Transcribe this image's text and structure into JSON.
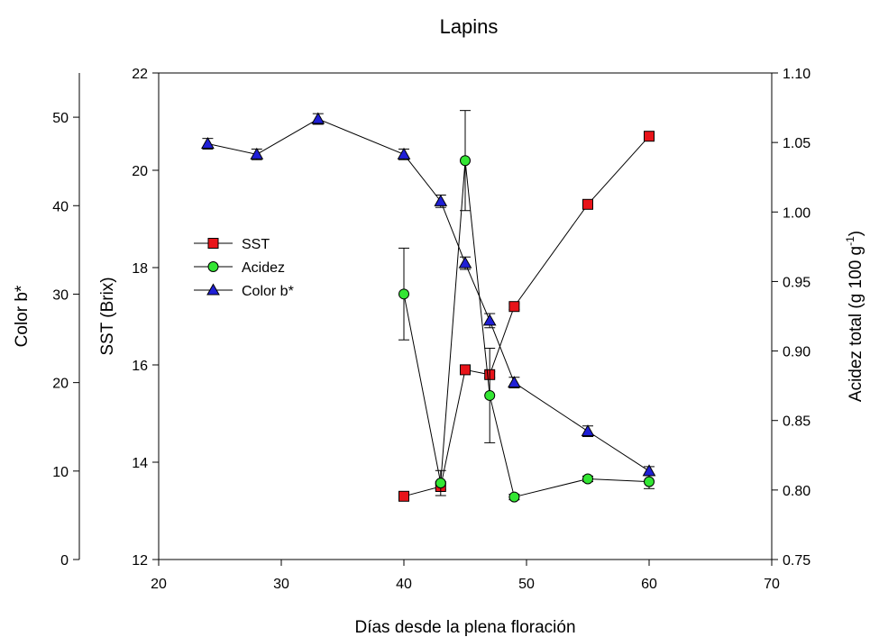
{
  "chart_data": {
    "type": "line",
    "title": "Lapins",
    "xlabel": "Días desde la plena floración",
    "ylabel_left_outer": "Color b*",
    "ylabel_left": "SST (Brix)",
    "ylabel_right": "Acidez total (g 100 g",
    "ylabel_right_sup": "-1",
    "ylabel_right_close": ")",
    "xlim": [
      20,
      70
    ],
    "xticks": [
      "20",
      "30",
      "40",
      "50",
      "60",
      "70"
    ],
    "y_sst_lim": [
      12,
      22
    ],
    "y_sst_ticks": [
      "12",
      "14",
      "16",
      "18",
      "20",
      "22"
    ],
    "y_color_lim": [
      0,
      55
    ],
    "y_color_ticks": [
      "0",
      "10",
      "20",
      "30",
      "40",
      "50"
    ],
    "y_acid_lim": [
      0.75,
      1.1
    ],
    "y_acid_ticks": [
      "0.75",
      "0.80",
      "0.85",
      "0.90",
      "0.95",
      "1.00",
      "1.05",
      "1.10"
    ],
    "legend_position": "left-center",
    "series": [
      {
        "name": "SST",
        "axis": "sst",
        "marker": "square",
        "color": "#e8141a",
        "x": [
          40,
          43,
          45,
          47,
          49,
          55,
          60
        ],
        "y": [
          13.3,
          13.5,
          15.9,
          15.8,
          17.2,
          19.3,
          20.7
        ],
        "err": [
          0.06,
          0.06,
          0.06,
          0.06,
          0.06,
          0.06,
          0.07
        ]
      },
      {
        "name": "Acidez",
        "axis": "acid",
        "marker": "circle",
        "color": "#33e633",
        "x": [
          40,
          43,
          45,
          47,
          49,
          55,
          60
        ],
        "y": [
          0.941,
          0.805,
          1.037,
          0.868,
          0.795,
          0.808,
          0.806
        ],
        "err": [
          0.033,
          0.009,
          0.036,
          0.034,
          0.002,
          0.002,
          0.005
        ]
      },
      {
        "name": "Color b*",
        "axis": "color",
        "marker": "triangle",
        "color": "#1f1fd6",
        "x": [
          24,
          28,
          33,
          40,
          43,
          45,
          47,
          49,
          55,
          60
        ],
        "y": [
          47.0,
          45.8,
          49.8,
          45.8,
          40.5,
          33.5,
          27.0,
          20.0,
          14.5,
          10.0
        ],
        "err": [
          0.6,
          0.6,
          0.6,
          0.6,
          0.7,
          0.7,
          0.8,
          0.6,
          0.6,
          0.5
        ]
      }
    ]
  }
}
